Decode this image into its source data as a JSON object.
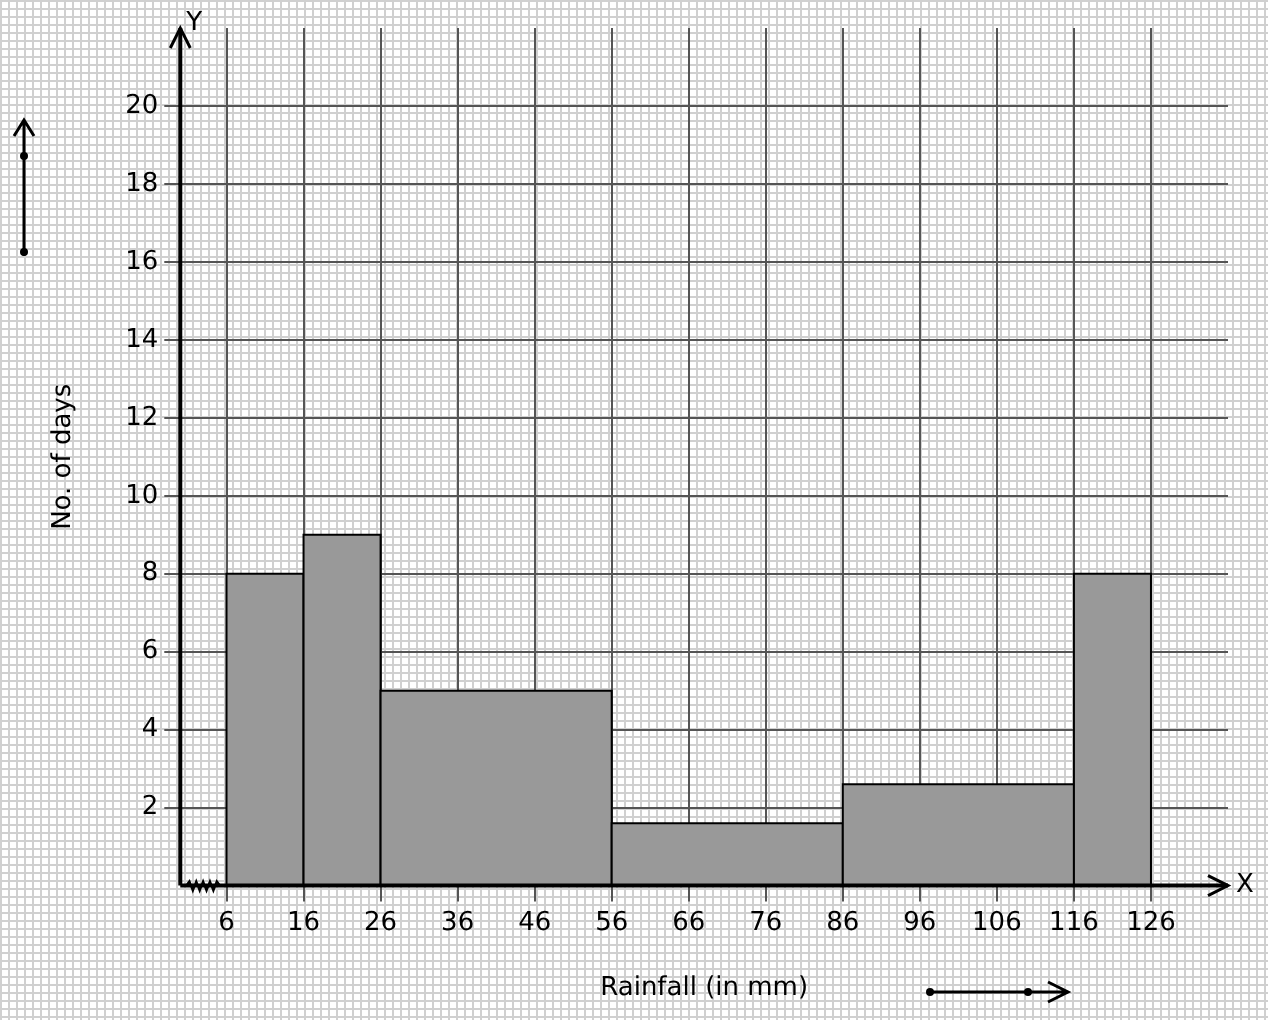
{
  "chart_data": {
    "type": "histogram",
    "xlabel": "Rainfall (in mm)",
    "ylabel": "No. of days",
    "bins": [
      6,
      16,
      26,
      56,
      86,
      116,
      126
    ],
    "values": [
      8,
      9,
      5,
      1.6,
      2.6,
      8
    ],
    "color": "#999999",
    "xlim": [
      0,
      136
    ],
    "xticks": [
      6,
      16,
      26,
      36,
      46,
      56,
      66,
      76,
      86,
      96,
      106,
      116,
      126
    ],
    "ylim": [
      0,
      22
    ],
    "yticks": [
      2,
      4,
      6,
      8,
      10,
      12,
      14,
      16,
      18,
      20
    ],
    "grid": true,
    "annotations": [
      "X",
      "Y"
    ]
  }
}
